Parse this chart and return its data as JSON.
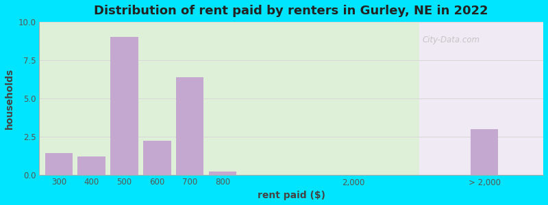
{
  "title": "Distribution of rent paid by renters in Gurley, NE in 2022",
  "xlabel": "rent paid ($)",
  "ylabel": "households",
  "bar_color": "#c4a8d0",
  "background_outer": "#00e5ff",
  "background_inner_left": "#dff0d8",
  "background_inner_right": "#f0eaf5",
  "ylim": [
    0,
    10
  ],
  "yticks": [
    0,
    2.5,
    5,
    7.5,
    10
  ],
  "categories": [
    "300",
    "400",
    "500",
    "600",
    "700",
    "800",
    "2,000",
    "> 2,000"
  ],
  "values": [
    1.4,
    1.2,
    9.0,
    2.2,
    6.4,
    0.2,
    0,
    3.0
  ],
  "bar_positions": [
    0,
    1,
    2,
    3,
    4,
    5,
    9,
    13
  ],
  "bar_width": 0.85,
  "title_fontsize": 13,
  "axis_label_fontsize": 10,
  "tick_fontsize": 8.5,
  "grid_color": "#d8d8d8",
  "watermark": "City-Data.com"
}
